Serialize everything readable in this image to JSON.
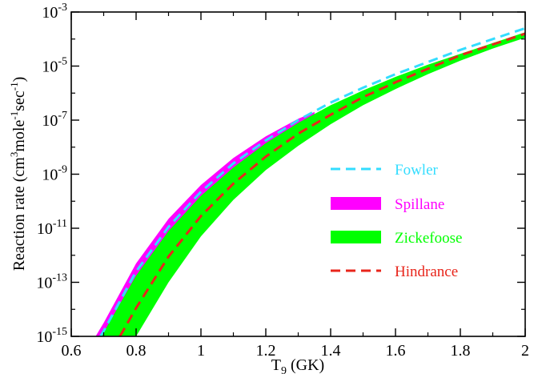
{
  "chart_data": {
    "type": "area",
    "xlabel_main": "T",
    "xlabel_sub": "9",
    "xlabel_unit": " (GK)",
    "ylabel_parts": [
      "Reaction rate (cm",
      "3",
      "mole",
      "-1",
      "sec",
      "-1",
      ")"
    ],
    "xlim": [
      0.6,
      2.0
    ],
    "ylim_log10": [
      -15,
      -3
    ],
    "y_scale": "log",
    "x_ticks": [
      {
        "value": 0.6,
        "label": "0.6"
      },
      {
        "value": 0.8,
        "label": "0.8"
      },
      {
        "value": 1.0,
        "label": "1"
      },
      {
        "value": 1.2,
        "label": "1.2"
      },
      {
        "value": 1.4,
        "label": "1.4"
      },
      {
        "value": 1.6,
        "label": "1.6"
      },
      {
        "value": 1.8,
        "label": "1.8"
      },
      {
        "value": 2.0,
        "label": "2"
      }
    ],
    "y_ticks": [
      {
        "exp": -15,
        "base": "10",
        "sup": "-15"
      },
      {
        "exp": -13,
        "base": "10",
        "sup": "-13"
      },
      {
        "exp": -11,
        "base": "10",
        "sup": "-11"
      },
      {
        "exp": -9,
        "base": "10",
        "sup": "-9"
      },
      {
        "exp": -7,
        "base": "10",
        "sup": "-7"
      },
      {
        "exp": -5,
        "base": "10",
        "sup": "-5"
      },
      {
        "exp": -3,
        "base": "10",
        "sup": "-3"
      }
    ],
    "legend_position": "right",
    "series": [
      {
        "name": "Fowler",
        "kind": "dashed-line",
        "color": "#33ddff",
        "x": [
          0.69,
          0.7,
          0.8,
          0.9,
          1.0,
          1.1,
          1.2,
          1.3,
          1.4,
          1.5,
          1.6,
          1.7,
          1.8,
          1.9,
          2.0
        ],
        "log10_y": [
          -15.0,
          -14.8,
          -12.6,
          -10.95,
          -9.65,
          -8.6,
          -7.75,
          -7.0,
          -6.35,
          -5.8,
          -5.3,
          -4.85,
          -4.4,
          -4.0,
          -3.6
        ]
      },
      {
        "name": "Spillane",
        "kind": "band",
        "color": "#ff00ff",
        "x": [
          0.675,
          0.7,
          0.8,
          0.9,
          1.0,
          1.1,
          1.2,
          1.3,
          1.35
        ],
        "log10_upper": [
          -15.0,
          -14.5,
          -12.3,
          -10.65,
          -9.4,
          -8.4,
          -7.6,
          -6.95,
          -6.7
        ],
        "log10_lower": [
          -15.0,
          -15.0,
          -13.0,
          -11.4,
          -10.05,
          -8.95,
          -8.0,
          -7.2,
          -6.85
        ]
      },
      {
        "name": "Zickefoose",
        "kind": "band",
        "color": "#00ff00",
        "x": [
          0.69,
          0.7,
          0.8,
          0.9,
          1.0,
          1.1,
          1.2,
          1.3,
          1.4,
          1.5,
          1.6,
          1.7,
          1.8,
          1.9,
          2.0
        ],
        "log10_upper": [
          -15.0,
          -14.85,
          -12.75,
          -11.1,
          -9.8,
          -8.75,
          -7.85,
          -7.1,
          -6.45,
          -5.9,
          -5.4,
          -4.95,
          -4.55,
          -4.15,
          -3.75
        ],
        "log10_lower": [
          -15.0,
          -15.0,
          -15.0,
          -13.0,
          -11.3,
          -9.95,
          -8.85,
          -7.95,
          -7.15,
          -6.45,
          -5.85,
          -5.3,
          -4.8,
          -4.35,
          -3.95
        ]
      },
      {
        "name": "Hindrance",
        "kind": "dashed-line",
        "color": "#e8251b",
        "x": [
          0.75,
          0.8,
          0.9,
          1.0,
          1.1,
          1.2,
          1.3,
          1.4,
          1.5,
          1.6,
          1.7,
          1.8,
          1.9,
          2.0
        ],
        "log10_y": [
          -15.0,
          -13.95,
          -12.05,
          -10.55,
          -9.35,
          -8.35,
          -7.5,
          -6.8,
          -6.15,
          -5.6,
          -5.1,
          -4.6,
          -4.2,
          -3.8
        ]
      }
    ]
  }
}
